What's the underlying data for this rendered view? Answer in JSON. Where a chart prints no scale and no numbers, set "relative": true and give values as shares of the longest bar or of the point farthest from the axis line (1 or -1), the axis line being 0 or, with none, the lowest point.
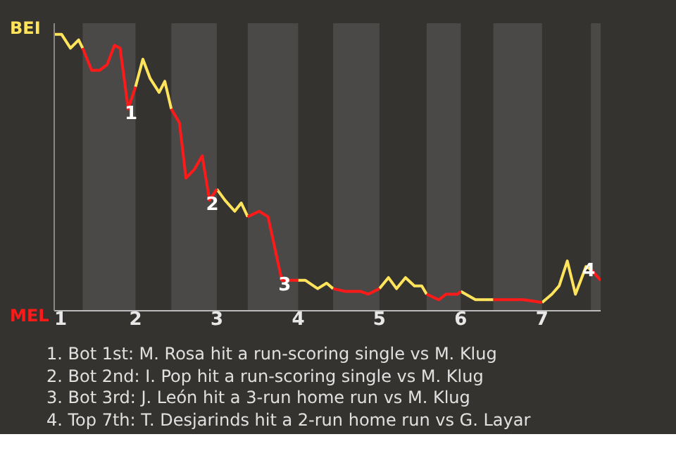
{
  "chart_data": {
    "type": "line",
    "relative": true,
    "x": [
      1.0,
      1.09,
      1.2,
      1.3,
      1.35,
      1.46,
      1.56,
      1.65,
      1.74,
      1.81,
      1.91,
      2.0,
      2.09,
      2.18,
      2.29,
      2.36,
      2.44,
      2.54,
      2.62,
      2.72,
      2.82,
      2.91,
      3.0,
      3.1,
      3.22,
      3.3,
      3.38,
      3.52,
      3.63,
      3.74,
      3.8,
      4.0,
      4.09,
      4.24,
      4.35,
      4.43,
      4.58,
      4.77,
      4.86,
      5.0,
      5.11,
      5.21,
      5.32,
      5.43,
      5.52,
      5.58,
      5.73,
      5.82,
      5.96,
      6.0,
      6.18,
      6.4,
      6.57,
      6.77,
      7.0,
      7.12,
      7.21,
      7.31,
      7.41,
      7.54,
      7.6,
      7.72
    ],
    "series": [
      {
        "color": "#ffe45c",
        "values": [
          1,
          1.0,
          0.95,
          0.98,
          0.95,
          null,
          null,
          null,
          null,
          null,
          null,
          0.81,
          0.91,
          0.84,
          0.79,
          0.83,
          0.73,
          null,
          null,
          null,
          null,
          null,
          0.44,
          0.4,
          0.36,
          0.39,
          0.34,
          null,
          null,
          null,
          null,
          0.11,
          0.11,
          0.08,
          0.1,
          0.08,
          null,
          null,
          null,
          0.08,
          0.12,
          0.08,
          0.12,
          0.09,
          0.09,
          0.06,
          null,
          null,
          null,
          0.07,
          0.04,
          0.04,
          null,
          null,
          0.03,
          0.06,
          0.09,
          0.18,
          0.06,
          0.16,
          0.15,
          null
        ]
      },
      {
        "color": "#ff1a1a",
        "values": [
          null,
          null,
          null,
          null,
          0.95,
          0.87,
          0.87,
          0.89,
          0.96,
          0.95,
          0.73,
          0.81,
          null,
          null,
          null,
          null,
          0.73,
          0.68,
          0.48,
          0.51,
          0.56,
          0.4,
          0.44,
          null,
          null,
          null,
          0.34,
          0.36,
          0.34,
          0.19,
          0.11,
          0.11,
          null,
          null,
          null,
          0.08,
          0.07,
          0.07,
          0.06,
          0.08,
          null,
          null,
          null,
          null,
          null,
          0.06,
          0.04,
          0.06,
          0.06,
          0.07,
          null,
          0.04,
          0.04,
          0.04,
          0.03,
          null,
          null,
          null,
          null,
          null,
          0.15,
          0.11
        ]
      }
    ],
    "xlim": [
      1,
      7.72
    ],
    "xticks": [
      1,
      2,
      3,
      4,
      5,
      6,
      7
    ],
    "marker": "none",
    "line_style": "solid",
    "bands": [
      {
        "axis": "x",
        "from": 1.35,
        "to": 2,
        "color": "#4a4948"
      },
      {
        "axis": "x",
        "from": 2.44,
        "to": 3,
        "color": "#4a4948"
      },
      {
        "axis": "x",
        "from": 3.38,
        "to": 4,
        "color": "#4a4948"
      },
      {
        "axis": "x",
        "from": 4.43,
        "to": 5,
        "color": "#4a4948"
      },
      {
        "axis": "x",
        "from": 5.58,
        "to": 6,
        "color": "#4a4948"
      },
      {
        "axis": "x",
        "from": 6.4,
        "to": 7,
        "color": "#4a4948"
      },
      {
        "axis": "x",
        "from": 7.6,
        "to": 7.72,
        "color": "#4a4948"
      }
    ],
    "annotations": [
      "BEI",
      "MEL",
      {
        "text": "1",
        "x": 1.91,
        "y": 0.73
      },
      {
        "text": "2",
        "x": 2.91,
        "y": 0.4
      },
      {
        "text": "3",
        "x": 3.8,
        "y": 0.11
      },
      {
        "text": "4",
        "x": 7.54,
        "y": 0.16
      },
      "1. Bot 1st: M. Rosa hit a run-scoring single vs M. Klug",
      "2. Bot 2nd: I. Pop hit a run-scoring single vs M. Klug",
      "3. Bot 3rd: J. León hit a 3-run home run vs M. Klug",
      "4. Top 7th: T. Desjarinds hit a 2-run home run vs G. Layar"
    ]
  }
}
